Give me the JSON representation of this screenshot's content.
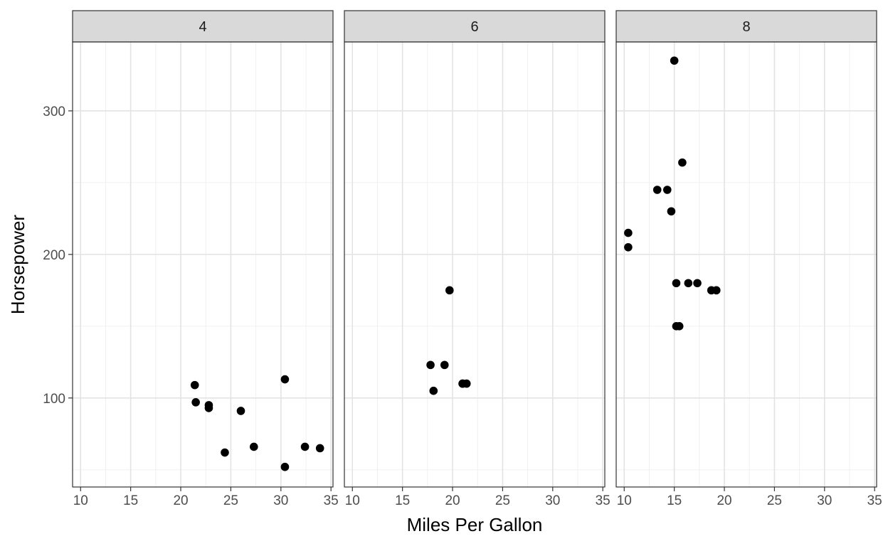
{
  "chart_data": {
    "type": "scatter",
    "facet_by": "cyl",
    "xlabel": "Miles Per Gallon",
    "ylabel": "Horsepower",
    "xlim": [
      9.2,
      35.2
    ],
    "ylim": [
      38,
      348
    ],
    "x_ticks": [
      10,
      15,
      20,
      25,
      30,
      35
    ],
    "y_ticks": [
      100,
      200,
      300
    ],
    "grid": true,
    "point_color": "#000000",
    "strip_fill": "#d9d9d9",
    "panels": [
      {
        "label": "4",
        "points": [
          {
            "x": 22.8,
            "y": 93
          },
          {
            "x": 24.4,
            "y": 62
          },
          {
            "x": 22.8,
            "y": 95
          },
          {
            "x": 32.4,
            "y": 66
          },
          {
            "x": 30.4,
            "y": 52
          },
          {
            "x": 33.9,
            "y": 65
          },
          {
            "x": 21.5,
            "y": 97
          },
          {
            "x": 27.3,
            "y": 66
          },
          {
            "x": 26.0,
            "y": 91
          },
          {
            "x": 30.4,
            "y": 113
          },
          {
            "x": 21.4,
            "y": 109
          }
        ]
      },
      {
        "label": "6",
        "points": [
          {
            "x": 21.0,
            "y": 110
          },
          {
            "x": 21.0,
            "y": 110
          },
          {
            "x": 21.4,
            "y": 110
          },
          {
            "x": 18.1,
            "y": 105
          },
          {
            "x": 19.2,
            "y": 123
          },
          {
            "x": 17.8,
            "y": 123
          },
          {
            "x": 19.7,
            "y": 175
          }
        ]
      },
      {
        "label": "8",
        "points": [
          {
            "x": 18.7,
            "y": 175
          },
          {
            "x": 14.3,
            "y": 245
          },
          {
            "x": 16.4,
            "y": 180
          },
          {
            "x": 17.3,
            "y": 180
          },
          {
            "x": 15.2,
            "y": 180
          },
          {
            "x": 10.4,
            "y": 205
          },
          {
            "x": 10.4,
            "y": 215
          },
          {
            "x": 14.7,
            "y": 230
          },
          {
            "x": 15.5,
            "y": 150
          },
          {
            "x": 15.2,
            "y": 150
          },
          {
            "x": 13.3,
            "y": 245
          },
          {
            "x": 19.2,
            "y": 175
          },
          {
            "x": 15.8,
            "y": 264
          },
          {
            "x": 15.0,
            "y": 335
          }
        ]
      }
    ]
  }
}
